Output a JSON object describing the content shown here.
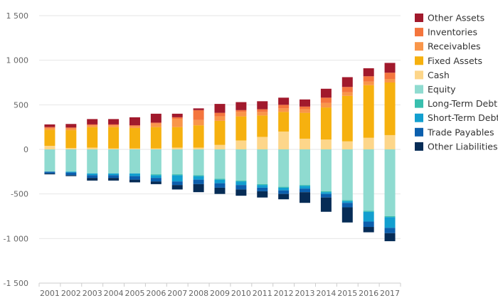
{
  "chart_data": {
    "type": "bar",
    "stacked": true,
    "categories": [
      "2001",
      "2002",
      "2003",
      "2004",
      "2005",
      "2006",
      "2007",
      "2008",
      "2009",
      "2010",
      "2011",
      "2012",
      "2013",
      "2014",
      "2015",
      "2016",
      "2017"
    ],
    "ylim": [
      -1500,
      1500
    ],
    "yticks": [
      1500,
      1000,
      500,
      0,
      -500,
      -1000,
      -1500
    ],
    "ytick_labels": [
      "1 500",
      "1 000",
      "500",
      "0",
      "-500",
      "-1 000",
      "-1 500"
    ],
    "grid": true,
    "legend_position": "right",
    "positive_series": [
      {
        "name": "Cash",
        "color": "#fdd68a",
        "values": [
          40,
          15,
          20,
          10,
          10,
          10,
          20,
          20,
          50,
          100,
          140,
          200,
          120,
          110,
          90,
          130,
          160
        ]
      },
      {
        "name": "Fixed Assets",
        "color": "#f6b10f",
        "values": [
          180,
          200,
          230,
          240,
          230,
          240,
          230,
          250,
          270,
          270,
          240,
          220,
          290,
          360,
          510,
          590,
          590
        ]
      },
      {
        "name": "Receivables",
        "color": "#f9964a",
        "values": [
          20,
          20,
          20,
          20,
          20,
          40,
          90,
          60,
          50,
          50,
          40,
          40,
          40,
          50,
          40,
          40,
          40
        ]
      },
      {
        "name": "Inventories",
        "color": "#f4753d",
        "values": [
          10,
          10,
          10,
          10,
          10,
          10,
          20,
          110,
          40,
          20,
          30,
          40,
          30,
          60,
          60,
          60,
          70
        ]
      },
      {
        "name": "Other Assets",
        "color": "#a1192c",
        "values": [
          30,
          40,
          60,
          60,
          90,
          100,
          40,
          20,
          100,
          90,
          90,
          80,
          80,
          100,
          110,
          90,
          110
        ]
      }
    ],
    "negative_series": [
      {
        "name": "Equity",
        "color": "#8fdbd0",
        "values": [
          -250,
          -250,
          -270,
          -270,
          -270,
          -280,
          -280,
          -290,
          -330,
          -350,
          -390,
          -420,
          -400,
          -470,
          -570,
          -690,
          -750
        ]
      },
      {
        "name": "Long-Term Debt",
        "color": "#38bfae",
        "values": [
          0,
          0,
          0,
          0,
          0,
          -10,
          -10,
          -10,
          -10,
          -10,
          -10,
          -10,
          -10,
          -10,
          -10,
          -10,
          -10
        ]
      },
      {
        "name": "Short-Term Debt",
        "color": "#129fcf",
        "values": [
          0,
          -10,
          -20,
          -20,
          -30,
          -30,
          -70,
          -40,
          -40,
          -40,
          -30,
          -30,
          -30,
          -20,
          -20,
          -110,
          -120
        ]
      },
      {
        "name": "Trade Payables",
        "color": "#0c5fad",
        "values": [
          -20,
          -30,
          -30,
          -30,
          -40,
          -40,
          -40,
          -50,
          -50,
          -50,
          -40,
          -40,
          -40,
          -40,
          -50,
          -60,
          -60
        ]
      },
      {
        "name": "Other Liabilities",
        "color": "#062c56",
        "values": [
          -10,
          -10,
          -30,
          -30,
          -30,
          -30,
          -50,
          -90,
          -70,
          -70,
          -70,
          -60,
          -120,
          -160,
          -170,
          -60,
          -90
        ]
      }
    ],
    "legend": [
      "Other Assets",
      "Inventories",
      "Receivables",
      "Fixed Assets",
      "Cash",
      "Equity",
      "Long-Term Debt",
      "Short-Term Debt",
      "Trade Payables",
      "Other Liabilities"
    ]
  }
}
